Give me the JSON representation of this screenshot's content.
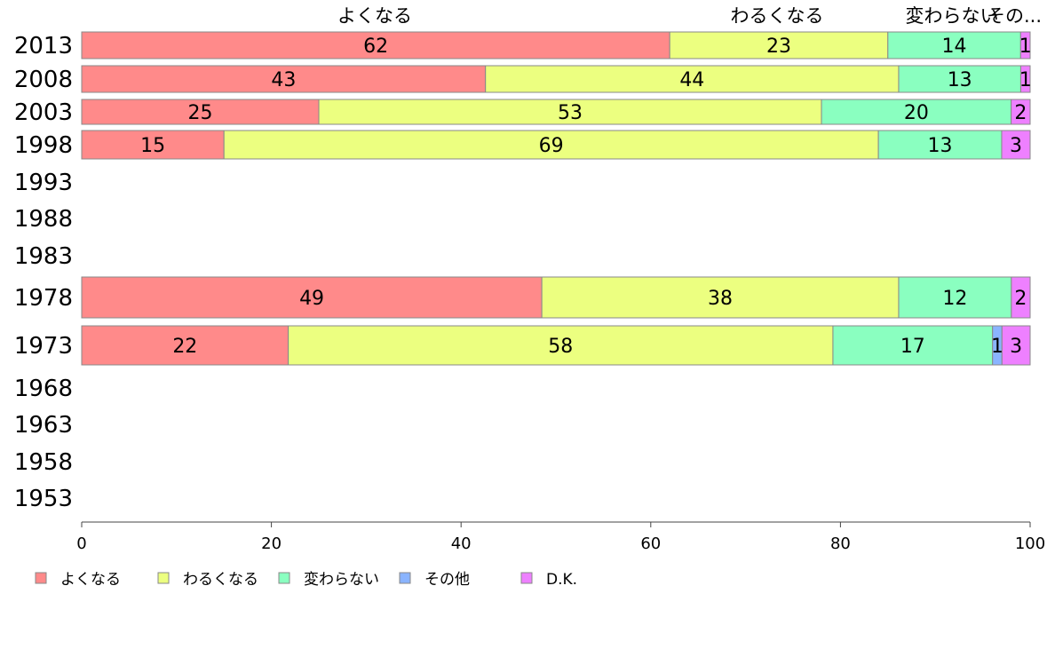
{
  "chart_data": {
    "type": "bar",
    "orientation": "horizontal",
    "stacked": true,
    "categories": [
      "2013",
      "2008",
      "2003",
      "1998",
      "1993",
      "1988",
      "1983",
      "1978",
      "1973",
      "1968",
      "1963",
      "1958",
      "1953"
    ],
    "series": [
      {
        "name": "よくなる",
        "color": "#ff8a8a",
        "values": [
          62,
          43,
          25,
          15,
          null,
          null,
          null,
          49,
          22,
          null,
          null,
          null,
          null
        ]
      },
      {
        "name": "わるくなる",
        "color": "#ecff80",
        "values": [
          23,
          44,
          53,
          69,
          null,
          null,
          null,
          38,
          58,
          null,
          null,
          null,
          null
        ]
      },
      {
        "name": "変わらない",
        "color": "#8affc0",
        "values": [
          14,
          13,
          20,
          13,
          null,
          null,
          null,
          12,
          17,
          null,
          null,
          null,
          null
        ]
      },
      {
        "name": "その他",
        "color": "#8ab4ff",
        "values": [
          0,
          0,
          0,
          0,
          null,
          null,
          null,
          0,
          1,
          null,
          null,
          null,
          null
        ]
      },
      {
        "name": "D.K.",
        "color": "#ee80ff",
        "values": [
          1,
          1,
          2,
          3,
          null,
          null,
          null,
          2,
          3,
          null,
          null,
          null,
          null
        ]
      }
    ],
    "top_labels": [
      "よくなる",
      "わるくなる",
      "変わらない",
      "その..."
    ],
    "xlim": [
      0,
      100
    ],
    "xticks": [
      0,
      20,
      40,
      60,
      80,
      100
    ],
    "grid": false,
    "legend_position": "bottom-left"
  }
}
